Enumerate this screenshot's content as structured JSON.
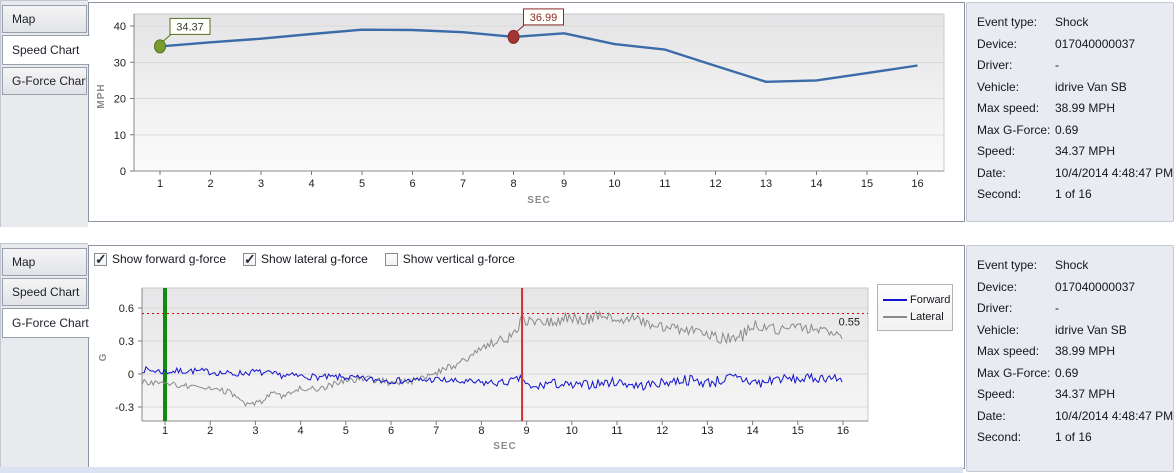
{
  "tabs": [
    "Map",
    "Speed Chart",
    "G-Force Chart"
  ],
  "panels": {
    "speed": {
      "active_tab": "Speed Chart"
    },
    "gforce": {
      "active_tab": "G-Force Chart"
    }
  },
  "gforce_controls": [
    {
      "label": "Show forward g-force",
      "checked": true
    },
    {
      "label": "Show lateral g-force",
      "checked": true
    },
    {
      "label": "Show vertical g-force",
      "checked": false
    }
  ],
  "info": {
    "rows": [
      {
        "label": "Event type:",
        "value": "Shock"
      },
      {
        "label": "Device:",
        "value": "017040000037"
      },
      {
        "label": "Driver:",
        "value": "-"
      },
      {
        "label": "Vehicle:",
        "value": "idrive Van SB"
      },
      {
        "label": "Max speed:",
        "value": "38.99 MPH"
      },
      {
        "label": "Max G-Force:",
        "value": "0.69"
      },
      {
        "label": "Speed:",
        "value": "34.37 MPH"
      },
      {
        "label": "Date:",
        "value": "10/4/2014 4:48:47 PM"
      },
      {
        "label": "Second:",
        "value": "1 of 16"
      }
    ]
  },
  "colors": {
    "speed_line": "#3b6ca8",
    "forward": "#1414cc",
    "lateral": "#8a8a8a",
    "marker_start": "#7b9c31",
    "marker_shock": "#a23535",
    "threshold": "#dd0000",
    "event_start_line": "#128a12",
    "shock_moment_line": "#d03030"
  },
  "chart_data": [
    {
      "type": "line",
      "title": "Speed Chart",
      "xlabel": "SEC",
      "ylabel": "MPH",
      "x": [
        1,
        2,
        3,
        4,
        5,
        6,
        7,
        8,
        9,
        10,
        11,
        12,
        13,
        14,
        15,
        16
      ],
      "series": [
        {
          "name": "Speed",
          "color": "#3b6ca8",
          "values": [
            34.37,
            35.5,
            36.5,
            37.8,
            38.99,
            38.9,
            38.3,
            36.99,
            38.0,
            35.0,
            33.5,
            29.0,
            24.6,
            25.0,
            27.0,
            29.1
          ]
        }
      ],
      "ylim": [
        0,
        40
      ],
      "yticks": [
        0,
        10,
        20,
        30,
        40
      ],
      "grid": true,
      "legend_position": "none",
      "markers": [
        {
          "x": 1,
          "value": 34.37,
          "label": "34.37",
          "color": "#7b9c31",
          "border": "#55701f",
          "label_color": "#3c3c3c"
        },
        {
          "x": 8,
          "value": 36.99,
          "label": "36.99",
          "color": "#a23535",
          "border": "#8b2a2a",
          "label_color": "#8b2a2a"
        }
      ]
    },
    {
      "type": "line",
      "title": "G-Force Chart",
      "xlabel": "SEC",
      "ylabel": "G",
      "xticks": [
        1,
        2,
        3,
        4,
        5,
        6,
        7,
        8,
        9,
        10,
        11,
        12,
        13,
        14,
        15,
        16
      ],
      "xlim": [
        0.5,
        16.55
      ],
      "ylim": [
        -0.43,
        0.78
      ],
      "yticks": [
        -0.3,
        0,
        0.3,
        0.6
      ],
      "grid": true,
      "legend_position": "right",
      "threshold": {
        "value": 0.55,
        "label": "0.55",
        "color": "#dd0000"
      },
      "vlines": [
        {
          "x": 1,
          "color": "#128a12",
          "width": 4,
          "name": "event-start-line"
        },
        {
          "x": 8.9,
          "color": "#d03030",
          "width": 2,
          "name": "shock-moment-line"
        }
      ],
      "sample_step": 0.04,
      "noise_seed": 7,
      "series": [
        {
          "name": "Forward",
          "color": "#1414cc",
          "anchors": [
            [
              0.5,
              0.04,
              0.03
            ],
            [
              1,
              0.02,
              0.03
            ],
            [
              1.5,
              0.03,
              0.03
            ],
            [
              2,
              0.02,
              0.03
            ],
            [
              2.5,
              0.0,
              0.03
            ],
            [
              3,
              0.02,
              0.03
            ],
            [
              3.5,
              -0.01,
              0.03
            ],
            [
              4,
              -0.02,
              0.03
            ],
            [
              4.5,
              -0.03,
              0.03
            ],
            [
              5,
              -0.03,
              0.03
            ],
            [
              5.5,
              -0.05,
              0.03
            ],
            [
              6,
              -0.06,
              0.03
            ],
            [
              6.5,
              -0.06,
              0.03
            ],
            [
              7,
              -0.05,
              0.03
            ],
            [
              7.5,
              -0.07,
              0.03
            ],
            [
              8,
              -0.08,
              0.035
            ],
            [
              8.5,
              -0.08,
              0.035
            ],
            [
              8.9,
              -0.04,
              0.03
            ],
            [
              9.1,
              -0.14,
              0.045
            ],
            [
              9.5,
              -0.08,
              0.045
            ],
            [
              10,
              -0.11,
              0.04
            ],
            [
              10.5,
              -0.09,
              0.045
            ],
            [
              11,
              -0.07,
              0.04
            ],
            [
              11.5,
              -0.11,
              0.045
            ],
            [
              12,
              -0.08,
              0.04
            ],
            [
              12.5,
              -0.05,
              0.05
            ],
            [
              13,
              -0.08,
              0.05
            ],
            [
              13.5,
              -0.04,
              0.055
            ],
            [
              13.8,
              -0.05,
              0.06
            ],
            [
              14.2,
              -0.09,
              0.065
            ],
            [
              14.5,
              -0.04,
              0.045
            ],
            [
              15,
              -0.05,
              0.04
            ],
            [
              15.3,
              -0.04,
              0.045
            ],
            [
              15.7,
              -0.03,
              0.04
            ],
            [
              16,
              -0.06,
              0.04
            ]
          ]
        },
        {
          "name": "Lateral",
          "color": "#8a8a8a",
          "anchors": [
            [
              0.5,
              -0.07,
              0.025
            ],
            [
              1,
              -0.09,
              0.025
            ],
            [
              1.5,
              -0.11,
              0.025
            ],
            [
              2,
              -0.14,
              0.03
            ],
            [
              2.4,
              -0.16,
              0.03
            ],
            [
              2.8,
              -0.28,
              0.02
            ],
            [
              3.1,
              -0.26,
              0.025
            ],
            [
              3.4,
              -0.17,
              0.03
            ],
            [
              3.6,
              -0.21,
              0.02
            ],
            [
              4,
              -0.13,
              0.025
            ],
            [
              4.5,
              -0.13,
              0.025
            ],
            [
              5,
              -0.05,
              0.03
            ],
            [
              5.5,
              -0.04,
              0.03
            ],
            [
              6,
              -0.08,
              0.03
            ],
            [
              6.5,
              -0.06,
              0.03
            ],
            [
              6.9,
              0.0,
              0.03
            ],
            [
              7.2,
              0.05,
              0.035
            ],
            [
              7.6,
              0.12,
              0.04
            ],
            [
              8,
              0.24,
              0.04
            ],
            [
              8.4,
              0.3,
              0.045
            ],
            [
              8.7,
              0.34,
              0.04
            ],
            [
              8.9,
              0.5,
              0.05
            ],
            [
              9.2,
              0.46,
              0.045
            ],
            [
              9.6,
              0.48,
              0.045
            ],
            [
              9.9,
              0.52,
              0.06
            ],
            [
              10.3,
              0.5,
              0.06
            ],
            [
              10.7,
              0.54,
              0.05
            ],
            [
              11,
              0.5,
              0.045
            ],
            [
              11.4,
              0.5,
              0.045
            ],
            [
              11.8,
              0.44,
              0.04
            ],
            [
              12.2,
              0.42,
              0.045
            ],
            [
              12.6,
              0.4,
              0.045
            ],
            [
              13,
              0.35,
              0.045
            ],
            [
              13.4,
              0.32,
              0.05
            ],
            [
              13.8,
              0.36,
              0.065
            ],
            [
              14.15,
              0.46,
              0.07
            ],
            [
              14.5,
              0.4,
              0.05
            ],
            [
              15,
              0.42,
              0.045
            ],
            [
              15.4,
              0.41,
              0.04
            ],
            [
              15.7,
              0.38,
              0.035
            ],
            [
              16,
              0.33,
              0.03
            ]
          ]
        }
      ]
    }
  ]
}
